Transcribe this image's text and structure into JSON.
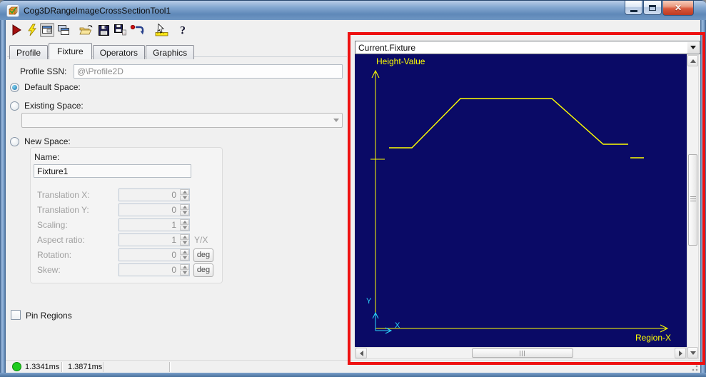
{
  "window": {
    "title": "Cog3DRangeImageCrossSectionTool1",
    "app_icon": "cube-icon",
    "controls": [
      {
        "name": "minimize"
      },
      {
        "name": "maximize"
      },
      {
        "name": "close"
      }
    ]
  },
  "toolbar": {
    "icons": [
      "run",
      "electric",
      "tool-window",
      "float-window",
      "open",
      "save",
      "save-image",
      "reset",
      "pointer-ruler",
      "help"
    ]
  },
  "tabs": {
    "items": [
      {
        "label": "Profile",
        "active": false
      },
      {
        "label": "Fixture",
        "active": true
      },
      {
        "label": "Operators",
        "active": false
      },
      {
        "label": "Graphics",
        "active": false
      }
    ]
  },
  "form": {
    "profile_ssn": {
      "label": "Profile SSN:",
      "value": "@\\Profile2D"
    },
    "default_space": {
      "label": "Default Space:",
      "selected": true
    },
    "existing_space": {
      "label": "Existing Space:",
      "selected": false,
      "value": ""
    },
    "new_space": {
      "label": "New Space:",
      "selected": false,
      "name": {
        "label": "Name:",
        "value": "Fixture1"
      },
      "rows": [
        {
          "label": "Translation X:",
          "value": "0"
        },
        {
          "label": "Translation Y:",
          "value": "0"
        },
        {
          "label": "Scaling:",
          "value": "1"
        },
        {
          "label": "Aspect ratio:",
          "value": "1",
          "suffix": "Y/X"
        },
        {
          "label": "Rotation:",
          "value": "0",
          "unit_button": "deg"
        },
        {
          "label": "Skew:",
          "value": "0",
          "unit_button": "deg"
        }
      ]
    },
    "pin_regions": {
      "label": "Pin Regions",
      "checked": false
    }
  },
  "display": {
    "selector_value": "Current.Fixture",
    "y_axis_label": "Height-Value",
    "x_axis_label": "Region-X",
    "mini_axis_labels": {
      "x": "X",
      "y": "Y"
    },
    "colors": {
      "background": "#0a0a66",
      "line": "#ffff00",
      "mini_axis": "#2bd9ff",
      "annotation_border": "#ee1111"
    },
    "plot": {
      "type": "line",
      "main_points": [
        [
          48,
          131
        ],
        [
          80,
          131
        ],
        [
          148,
          62
        ],
        [
          276,
          62
        ],
        [
          348,
          126
        ],
        [
          383,
          126
        ]
      ],
      "extra_segment": [
        [
          386,
          145
        ],
        [
          405,
          145
        ]
      ],
      "axis_tick_y": 147
    }
  },
  "status": {
    "indicator_color": "#1ecc1e",
    "time1": "1.3341ms",
    "time2": "1.3871ms"
  }
}
